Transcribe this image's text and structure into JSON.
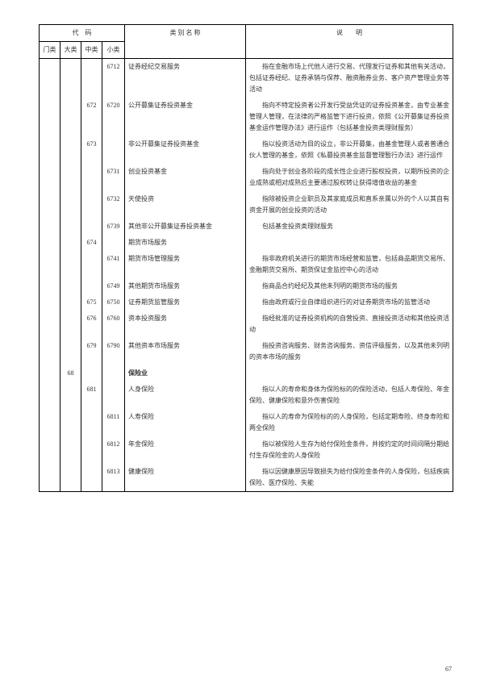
{
  "headers": {
    "code_group": "代　码",
    "name": "类 别 名 称",
    "desc": "说　　明",
    "men": "门类",
    "da": "大类",
    "zh": "中类",
    "xi": "小类"
  },
  "page_number": "67",
  "rows": [
    {
      "men": "",
      "da": "",
      "zh": "",
      "xi": "6712",
      "name": "证券经纪交易服务",
      "desc": "指在金融市场上代他人进行交易、代理发行证券和其他有关活动，包括证券经纪、证券承销与保荐、融资融券业务、客户资产管理业务等活动"
    },
    {
      "men": "",
      "da": "",
      "zh": "672",
      "xi": "6720",
      "name": "公开募集证券投资基金",
      "desc": "指向不特定投资者公开发行受益凭证的证券投资基金，由专业基金管理人管理，在法律的严格监管下进行投资，依照《公开募集证券投资基金运作管理办法》进行运作（包括基金投资类理财服务）"
    },
    {
      "men": "",
      "da": "",
      "zh": "673",
      "xi": "",
      "name": "非公开募集证券投资基金",
      "desc": "指以投资活动为目的设立，非公开募集，由基金管理人或者普通合伙人管理的基金，依照《私募投资基金监督管理暂行办法》进行运作"
    },
    {
      "men": "",
      "da": "",
      "zh": "",
      "xi": "6731",
      "name": "创业投资基金",
      "desc": "指向处于创业各阶段的成长性企业进行股权投资，以期所投资的企业成熟或相对成熟后主要通过股权转让获得增值收益的基金"
    },
    {
      "men": "",
      "da": "",
      "zh": "",
      "xi": "6732",
      "name": "天使投资",
      "desc": "指除被投资企业职员及其家庭成员和直系亲属以外的个人以其自有资金开展的创业投资的活动"
    },
    {
      "men": "",
      "da": "",
      "zh": "",
      "xi": "6739",
      "name": "其他非公开募集证券投资基金",
      "desc": "包括基金投资类理财服务"
    },
    {
      "men": "",
      "da": "",
      "zh": "674",
      "xi": "",
      "name": "期货市场服务",
      "desc": ""
    },
    {
      "men": "",
      "da": "",
      "zh": "",
      "xi": "6741",
      "name": "期货市场管理服务",
      "desc": "指非政府机关进行的期货市场经营和监管，包括商品期货交易所、金融期货交易所、期货保证金监控中心的活动"
    },
    {
      "men": "",
      "da": "",
      "zh": "",
      "xi": "6749",
      "name": "其他期货市场服务",
      "desc": "指商品合约经纪及其他未列明的期货市场的服务"
    },
    {
      "men": "",
      "da": "",
      "zh": "675",
      "xi": "6750",
      "name": "证券期货监管服务",
      "desc": "指由政府或行业自律组织进行的对证券期货市场的监管活动"
    },
    {
      "men": "",
      "da": "",
      "zh": "676",
      "xi": "6760",
      "name": "资本投资服务",
      "desc": "指经批准的证券投资机构的自营投资、直接投资活动和其他投资活动"
    },
    {
      "men": "",
      "da": "",
      "zh": "679",
      "xi": "6790",
      "name": "其他资本市场服务",
      "desc": "指投资咨询服务、财务咨询服务、资信评级服务，以及其他未列明的资本市场的服务"
    },
    {
      "men": "",
      "da": "68",
      "zh": "",
      "xi": "",
      "name": "保险业",
      "bold": true,
      "desc": ""
    },
    {
      "men": "",
      "da": "",
      "zh": "681",
      "xi": "",
      "name": "人身保险",
      "desc": "指以人的寿命和身体为保险标的的保险活动，包括人寿保险、年金保险、健康保险和意外伤害保险"
    },
    {
      "men": "",
      "da": "",
      "zh": "",
      "xi": "6811",
      "name": "人寿保险",
      "desc": "指以人的寿命为保险标的的人身保险，包括定期寿险、终身寿险和两全保险"
    },
    {
      "men": "",
      "da": "",
      "zh": "",
      "xi": "6812",
      "name": "年金保险",
      "desc": "指以被保险人生存为给付保险金条件，并按约定的时间间隔分期给付生存保险金的人身保险"
    },
    {
      "men": "",
      "da": "",
      "zh": "",
      "xi": "6813",
      "name": "健康保险",
      "desc": "指以因健康原因导致损失为给付保险金条件的人身保险，包括疾病保险、医疗保险、失能"
    }
  ]
}
